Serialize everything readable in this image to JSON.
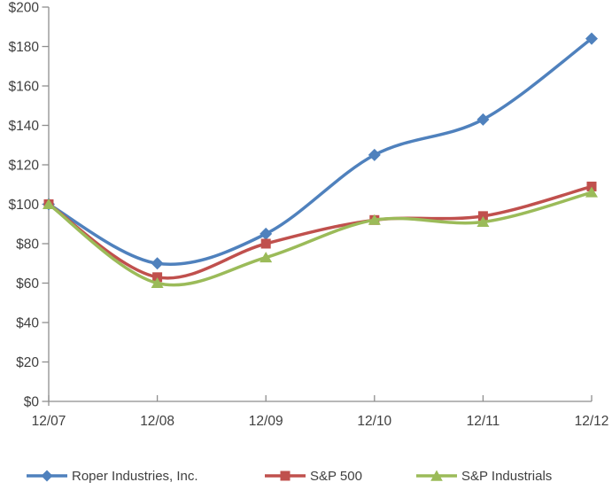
{
  "chart_data": {
    "type": "line",
    "title": "",
    "xlabel": "",
    "ylabel": "",
    "x_categories": [
      "12/07",
      "12/08",
      "12/09",
      "12/10",
      "12/11",
      "12/12"
    ],
    "y_tick_values": [
      0,
      20,
      40,
      60,
      80,
      100,
      120,
      140,
      160,
      180,
      200
    ],
    "y_tick_labels": [
      "$0",
      "$20",
      "$40",
      "$60",
      "$80",
      "$100",
      "$120",
      "$140",
      "$160",
      "$180",
      "$200"
    ],
    "ylim": [
      0,
      200
    ],
    "grid": "off",
    "line_style": "smooth",
    "legend_position": "bottom",
    "axis_color": "#8E8E8E",
    "text_color": "#404040",
    "series": [
      {
        "name": "Roper Industries, Inc.",
        "marker": "diamond",
        "color": "#4F81BD",
        "values": [
          100,
          70,
          85,
          125,
          143,
          184
        ]
      },
      {
        "name": "S&P 500",
        "marker": "square",
        "color": "#C0504D",
        "values": [
          100,
          63,
          80,
          92,
          94,
          109
        ]
      },
      {
        "name": "S&P Industrials",
        "marker": "triangle",
        "color": "#9BBB59",
        "values": [
          100,
          60,
          73,
          92,
          91,
          106
        ]
      }
    ]
  }
}
